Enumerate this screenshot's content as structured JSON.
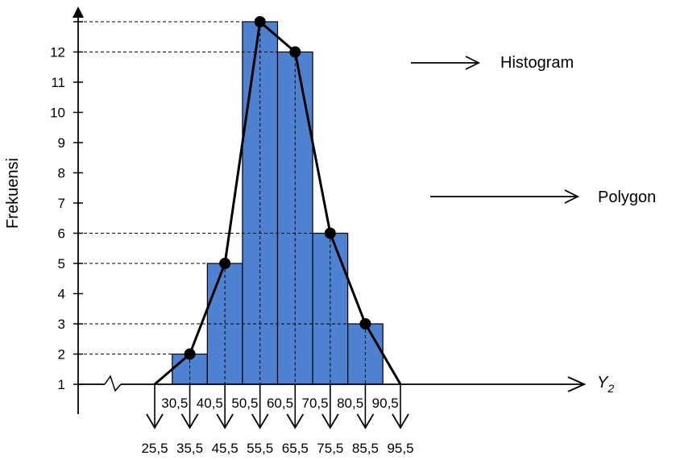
{
  "chart_data": {
    "type": "bar",
    "xlabel": "Y2",
    "xlabel_base": "Y",
    "xlabel_sub": "2",
    "ylabel": "Frekuensi",
    "y_tick_labels": [
      "1",
      "2",
      "3",
      "4",
      "5",
      "6",
      "7",
      "8",
      "9",
      "10",
      "11",
      "12"
    ],
    "class_boundaries": [
      "30,5",
      "40,5",
      "50,5",
      "60,5",
      "70,5",
      "80,5",
      "90,5"
    ],
    "midpoints": [
      "25,5",
      "35,5",
      "45,5",
      "55,5",
      "65,5",
      "75,5",
      "85,5",
      "95,5"
    ],
    "bars": [
      {
        "lower": 30.5,
        "upper": 40.5,
        "frequency": 2
      },
      {
        "lower": 40.5,
        "upper": 50.5,
        "frequency": 5
      },
      {
        "lower": 50.5,
        "upper": 60.5,
        "frequency": 13
      },
      {
        "lower": 60.5,
        "upper": 70.5,
        "frequency": 12
      },
      {
        "lower": 70.5,
        "upper": 80.5,
        "frequency": 6
      },
      {
        "lower": 80.5,
        "upper": 90.5,
        "frequency": 3
      }
    ],
    "polygon": [
      {
        "x": 25.5,
        "y": 1
      },
      {
        "x": 35.5,
        "y": 2
      },
      {
        "x": 45.5,
        "y": 5
      },
      {
        "x": 55.5,
        "y": 13
      },
      {
        "x": 65.5,
        "y": 12
      },
      {
        "x": 75.5,
        "y": 6
      },
      {
        "x": 85.5,
        "y": 3
      },
      {
        "x": 95.5,
        "y": 1
      }
    ],
    "annotations": {
      "histogram": "Histogram",
      "polygon": "Polygon"
    },
    "colors": {
      "bar_fill": "#4f81d1",
      "bar_edge": "#000000",
      "line": "#000000"
    }
  }
}
